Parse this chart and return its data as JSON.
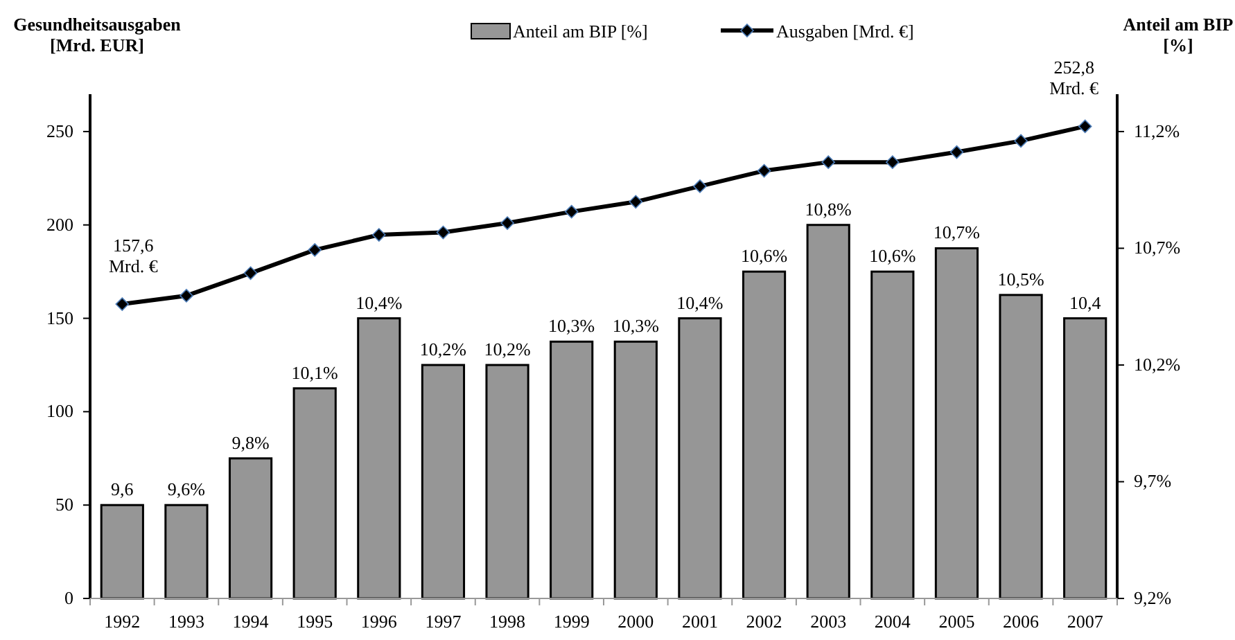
{
  "chart_data": {
    "type": "bar",
    "categories": [
      "1992",
      "1993",
      "1994",
      "1995",
      "1996",
      "1997",
      "1998",
      "1999",
      "2000",
      "2001",
      "2002",
      "2003",
      "2004",
      "2005",
      "2006",
      "2007"
    ],
    "ylabel": "Gesundheitsausgaben\n[Mrd. EUR]",
    "y2label": "Anteil am BIP\n[%]",
    "ylim": [
      0,
      270
    ],
    "yticks": [
      0,
      50,
      100,
      150,
      200,
      250
    ],
    "y2lim": [
      9.2,
      11.36
    ],
    "y2ticks": [
      {
        "value": 9.2,
        "label": "9,2%"
      },
      {
        "value": 9.7,
        "label": "9,7%"
      },
      {
        "value": 10.2,
        "label": "10,2%"
      },
      {
        "value": 10.7,
        "label": "10,7%"
      },
      {
        "value": 11.2,
        "label": "11,2%"
      }
    ],
    "series": [
      {
        "name": "Anteil am BIP [%]",
        "axis": "y2",
        "color": "#969696",
        "values": [
          9.6,
          9.6,
          9.8,
          10.1,
          10.4,
          10.2,
          10.2,
          10.3,
          10.3,
          10.4,
          10.6,
          10.8,
          10.6,
          10.7,
          10.5,
          10.4
        ],
        "value_labels": [
          "9,6",
          "9,6%",
          "9,8%",
          "10,1%",
          "10,4%",
          "10,2%",
          "10,2%",
          "10,3%",
          "10,3%",
          "10,4%",
          "10,6%",
          "10,8%",
          "10,6%",
          "10,7%",
          "10,5%",
          "10,4"
        ]
      },
      {
        "name": "Ausgaben [Mrd. €]",
        "type": "line",
        "axis": "y",
        "color": "#000000",
        "marker": "diamond",
        "values": [
          157.6,
          162.1,
          174.2,
          186.6,
          194.7,
          196.0,
          201.0,
          207.1,
          212.4,
          220.7,
          229.0,
          233.6,
          233.6,
          239.0,
          245.0,
          252.8
        ]
      }
    ],
    "annotations": [
      {
        "text": "157,6\nMrd. €",
        "x": "1992",
        "y": 157.6
      },
      {
        "text": "252,8\nMrd. €",
        "x": "2007",
        "y": 252.8
      }
    ],
    "legend": "top",
    "grid": false
  }
}
